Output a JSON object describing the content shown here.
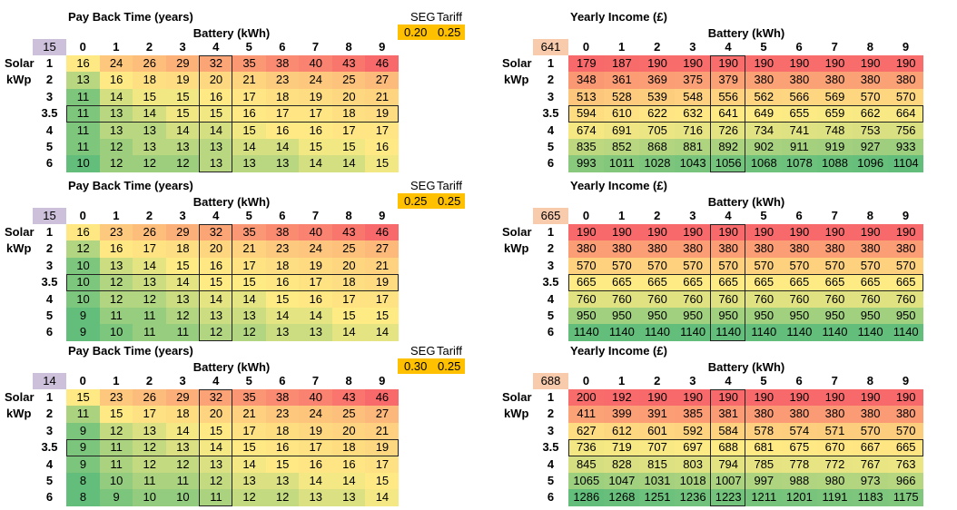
{
  "labels": {
    "solar": "Solar",
    "kwp": "kWp"
  },
  "colors": {
    "low": "#63BE7B",
    "mid": "#FFEB84",
    "high": "#F8696B",
    "corner_payback": "#CCC0DA",
    "corner_income": "#F8CBAD",
    "seg_box": "#FFC000",
    "highlight_column": "4",
    "highlight_row": "3.5"
  },
  "blocks": [
    {
      "seg_label": "SEG",
      "tariff_label": "Tariff",
      "seg": "0.20",
      "tariff": "0.25",
      "payback": {
        "title": "Pay Back Time (years)",
        "battery_label": "Battery (kWh)",
        "corner": "15",
        "columns": [
          "0",
          "1",
          "2",
          "3",
          "4",
          "5",
          "6",
          "7",
          "8",
          "9"
        ],
        "rows": [
          {
            "label": "1",
            "values": [
              16,
              24,
              26,
              29,
              32,
              35,
              38,
              40,
              43,
              46
            ]
          },
          {
            "label": "2",
            "values": [
              13,
              16,
              18,
              19,
              20,
              21,
              23,
              24,
              25,
              27
            ]
          },
          {
            "label": "3",
            "values": [
              11,
              14,
              15,
              15,
              16,
              17,
              18,
              19,
              20,
              21
            ]
          },
          {
            "label": "3.5",
            "values": [
              11,
              13,
              14,
              15,
              15,
              16,
              17,
              17,
              18,
              19
            ]
          },
          {
            "label": "4",
            "values": [
              11,
              13,
              13,
              14,
              14,
              15,
              16,
              16,
              17,
              17
            ]
          },
          {
            "label": "5",
            "values": [
              11,
              12,
              13,
              13,
              13,
              14,
              14,
              15,
              15,
              16
            ]
          },
          {
            "label": "6",
            "values": [
              10,
              12,
              12,
              12,
              13,
              13,
              13,
              14,
              14,
              15
            ]
          }
        ]
      },
      "income": {
        "title": "Yearly Income (£)",
        "battery_label": "Battery (kWh)",
        "corner": "641",
        "columns": [
          "0",
          "1",
          "2",
          "3",
          "4",
          "5",
          "6",
          "7",
          "8",
          "9"
        ],
        "rows": [
          {
            "label": "1",
            "values": [
              179,
              187,
              190,
              190,
              190,
              190,
              190,
              190,
              190,
              190
            ]
          },
          {
            "label": "2",
            "values": [
              348,
              361,
              369,
              375,
              379,
              380,
              380,
              380,
              380,
              380
            ]
          },
          {
            "label": "3",
            "values": [
              513,
              528,
              539,
              548,
              556,
              562,
              566,
              569,
              570,
              570
            ]
          },
          {
            "label": "3.5",
            "values": [
              594,
              610,
              622,
              632,
              641,
              649,
              655,
              659,
              662,
              664
            ]
          },
          {
            "label": "4",
            "values": [
              674,
              691,
              705,
              716,
              726,
              734,
              741,
              748,
              753,
              756
            ]
          },
          {
            "label": "5",
            "values": [
              835,
              852,
              868,
              881,
              892,
              902,
              911,
              919,
              927,
              933
            ]
          },
          {
            "label": "6",
            "values": [
              993,
              1011,
              1028,
              1043,
              1056,
              1068,
              1078,
              1088,
              1096,
              1104
            ]
          }
        ]
      }
    },
    {
      "seg_label": "SEG",
      "tariff_label": "Tariff",
      "seg": "0.25",
      "tariff": "0.25",
      "payback": {
        "title": "Pay Back Time (years)",
        "battery_label": "Battery (kWh)",
        "corner": "15",
        "columns": [
          "0",
          "1",
          "2",
          "3",
          "4",
          "5",
          "6",
          "7",
          "8",
          "9"
        ],
        "rows": [
          {
            "label": "1",
            "values": [
              16,
              23,
              26,
              29,
              32,
              35,
              38,
              40,
              43,
              46
            ]
          },
          {
            "label": "2",
            "values": [
              12,
              16,
              17,
              18,
              20,
              21,
              23,
              24,
              25,
              27
            ]
          },
          {
            "label": "3",
            "values": [
              10,
              13,
              14,
              15,
              16,
              17,
              18,
              19,
              20,
              21
            ]
          },
          {
            "label": "3.5",
            "values": [
              10,
              12,
              13,
              14,
              15,
              15,
              16,
              17,
              18,
              19
            ]
          },
          {
            "label": "4",
            "values": [
              10,
              12,
              12,
              13,
              14,
              14,
              15,
              16,
              17,
              17
            ]
          },
          {
            "label": "5",
            "values": [
              9,
              11,
              11,
              12,
              13,
              13,
              14,
              14,
              15,
              15
            ]
          },
          {
            "label": "6",
            "values": [
              9,
              10,
              11,
              11,
              12,
              12,
              13,
              13,
              14,
              14
            ]
          }
        ]
      },
      "income": {
        "title": "Yearly Income (£)",
        "battery_label": "Battery (kWh)",
        "corner": "665",
        "columns": [
          "0",
          "1",
          "2",
          "3",
          "4",
          "5",
          "6",
          "7",
          "8",
          "9"
        ],
        "rows": [
          {
            "label": "1",
            "values": [
              190,
              190,
              190,
              190,
              190,
              190,
              190,
              190,
              190,
              190
            ]
          },
          {
            "label": "2",
            "values": [
              380,
              380,
              380,
              380,
              380,
              380,
              380,
              380,
              380,
              380
            ]
          },
          {
            "label": "3",
            "values": [
              570,
              570,
              570,
              570,
              570,
              570,
              570,
              570,
              570,
              570
            ]
          },
          {
            "label": "3.5",
            "values": [
              665,
              665,
              665,
              665,
              665,
              665,
              665,
              665,
              665,
              665
            ]
          },
          {
            "label": "4",
            "values": [
              760,
              760,
              760,
              760,
              760,
              760,
              760,
              760,
              760,
              760
            ]
          },
          {
            "label": "5",
            "values": [
              950,
              950,
              950,
              950,
              950,
              950,
              950,
              950,
              950,
              950
            ]
          },
          {
            "label": "6",
            "values": [
              1140,
              1140,
              1140,
              1140,
              1140,
              1140,
              1140,
              1140,
              1140,
              1140
            ]
          }
        ]
      }
    },
    {
      "seg_label": "SEG",
      "tariff_label": "Tariff",
      "seg": "0.30",
      "tariff": "0.25",
      "payback": {
        "title": "Pay Back Time (years)",
        "battery_label": "Battery (kWh)",
        "corner": "14",
        "columns": [
          "0",
          "1",
          "2",
          "3",
          "4",
          "5",
          "6",
          "7",
          "8",
          "9"
        ],
        "rows": [
          {
            "label": "1",
            "values": [
              15,
              23,
              26,
              29,
              32,
              35,
              38,
              40,
              43,
              46
            ]
          },
          {
            "label": "2",
            "values": [
              11,
              15,
              17,
              18,
              20,
              21,
              23,
              24,
              25,
              27
            ]
          },
          {
            "label": "3",
            "values": [
              9,
              12,
              13,
              14,
              15,
              17,
              18,
              19,
              20,
              21
            ]
          },
          {
            "label": "3.5",
            "values": [
              9,
              11,
              12,
              13,
              14,
              15,
              16,
              17,
              18,
              19
            ]
          },
          {
            "label": "4",
            "values": [
              9,
              11,
              12,
              12,
              13,
              14,
              15,
              16,
              16,
              17
            ]
          },
          {
            "label": "5",
            "values": [
              8,
              10,
              11,
              11,
              12,
              13,
              13,
              14,
              14,
              15
            ]
          },
          {
            "label": "6",
            "values": [
              8,
              9,
              10,
              10,
              11,
              12,
              12,
              13,
              13,
              14
            ]
          }
        ]
      },
      "income": {
        "title": "Yearly Income (£)",
        "battery_label": "Battery (kWh)",
        "corner": "688",
        "columns": [
          "0",
          "1",
          "2",
          "3",
          "4",
          "5",
          "6",
          "7",
          "8",
          "9"
        ],
        "rows": [
          {
            "label": "1",
            "values": [
              200,
              192,
              190,
              190,
              190,
              190,
              190,
              190,
              190,
              190
            ]
          },
          {
            "label": "2",
            "values": [
              411,
              399,
              391,
              385,
              381,
              380,
              380,
              380,
              380,
              380
            ]
          },
          {
            "label": "3",
            "values": [
              627,
              612,
              601,
              592,
              584,
              578,
              574,
              571,
              570,
              570
            ]
          },
          {
            "label": "3.5",
            "values": [
              736,
              719,
              707,
              697,
              688,
              681,
              675,
              670,
              667,
              665
            ]
          },
          {
            "label": "4",
            "values": [
              845,
              828,
              815,
              803,
              794,
              785,
              778,
              772,
              767,
              763
            ]
          },
          {
            "label": "5",
            "values": [
              1065,
              1047,
              1031,
              1018,
              1007,
              997,
              988,
              980,
              973,
              966
            ]
          },
          {
            "label": "6",
            "values": [
              1286,
              1268,
              1251,
              1236,
              1223,
              1211,
              1201,
              1191,
              1183,
              1175
            ]
          }
        ]
      }
    }
  ]
}
